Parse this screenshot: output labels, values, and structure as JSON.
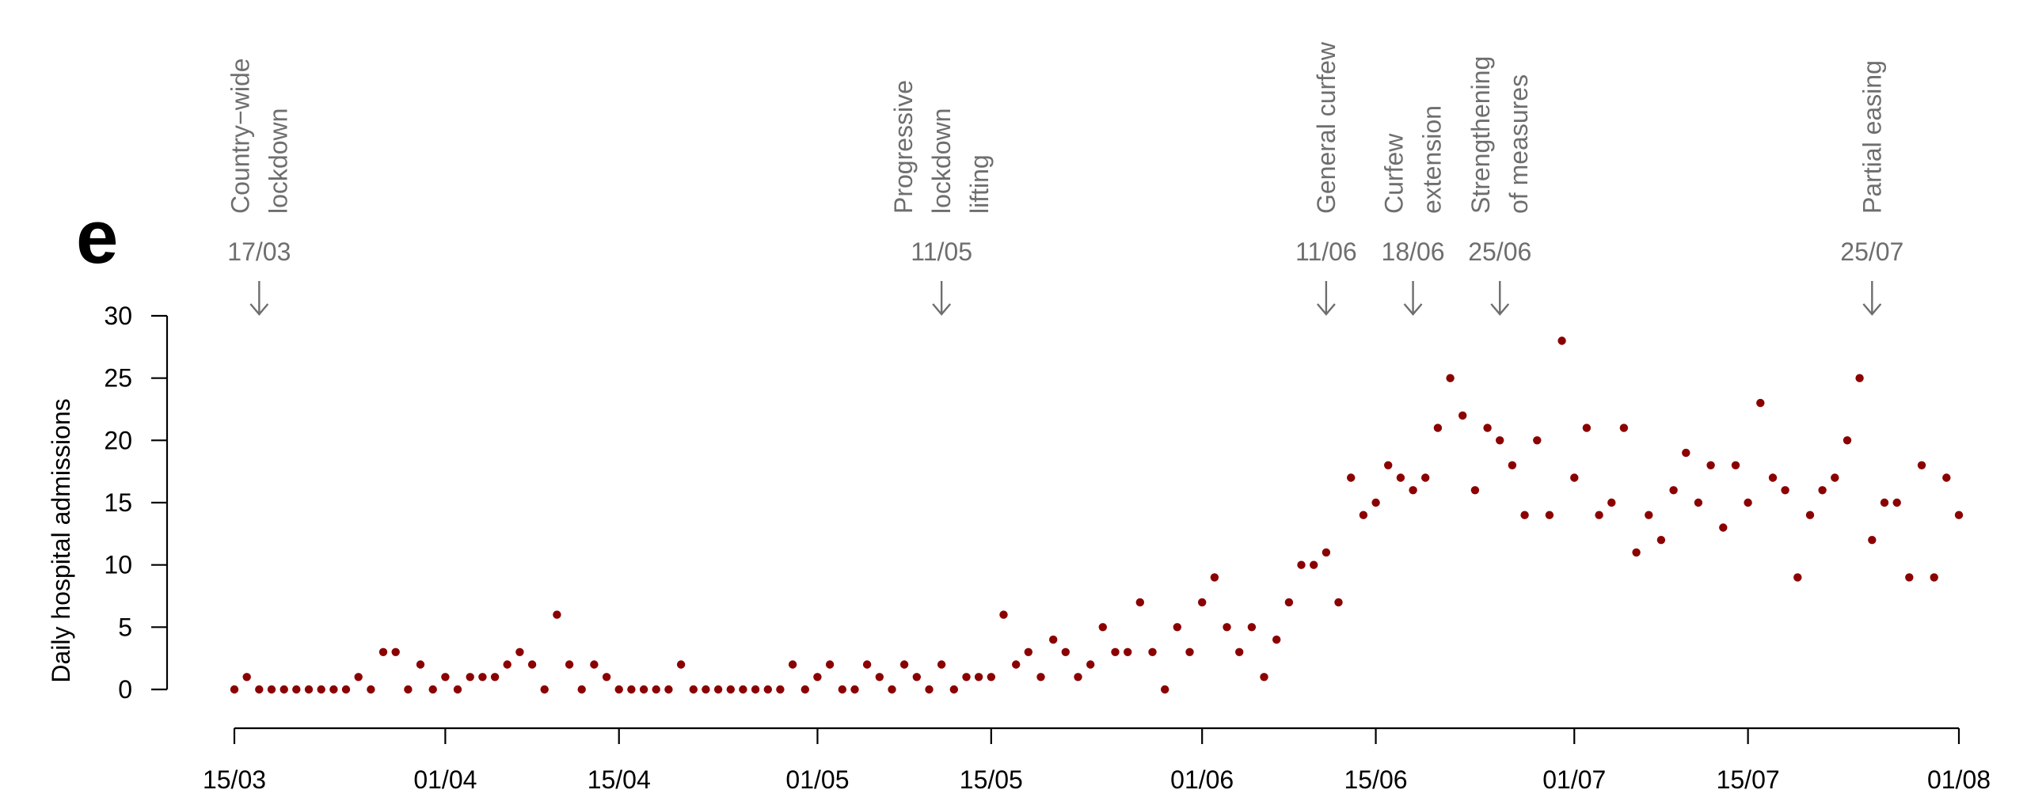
{
  "panel_label": "e",
  "chart_data": {
    "type": "scatter",
    "ylabel": "Daily hospital admissions",
    "xlabel": "",
    "ylim": [
      0,
      30
    ],
    "yticks": [
      0,
      5,
      10,
      15,
      20,
      25,
      30
    ],
    "xlim": [
      "2020-03-15",
      "2020-08-01"
    ],
    "xticks": [
      {
        "date": "2020-03-15",
        "label": "15/03"
      },
      {
        "date": "2020-04-01",
        "label": "01/04"
      },
      {
        "date": "2020-04-15",
        "label": "15/04"
      },
      {
        "date": "2020-05-01",
        "label": "01/05"
      },
      {
        "date": "2020-05-15",
        "label": "15/05"
      },
      {
        "date": "2020-06-01",
        "label": "01/06"
      },
      {
        "date": "2020-06-15",
        "label": "15/06"
      },
      {
        "date": "2020-07-01",
        "label": "01/07"
      },
      {
        "date": "2020-07-15",
        "label": "15/07"
      },
      {
        "date": "2020-08-01",
        "label": "01/08"
      }
    ],
    "point_color": "#8b0000",
    "annotation_color": "#6e6e6e",
    "events": [
      {
        "date": "2020-03-17",
        "date_label": "17/03",
        "lines": [
          "Country−wide",
          "lockdown"
        ]
      },
      {
        "date": "2020-05-11",
        "date_label": "11/05",
        "lines": [
          "Progressive",
          "lockdown",
          "lifting"
        ]
      },
      {
        "date": "2020-06-11",
        "date_label": "11/06",
        "lines": [
          "General curfew"
        ]
      },
      {
        "date": "2020-06-18",
        "date_label": "18/06",
        "lines": [
          "Curfew",
          "extension"
        ]
      },
      {
        "date": "2020-06-25",
        "date_label": "25/06",
        "lines": [
          "Strengthening",
          "of measures"
        ]
      },
      {
        "date": "2020-07-25",
        "date_label": "25/07",
        "lines": [
          "Partial easing"
        ]
      }
    ],
    "series": [
      {
        "start_date": "2020-03-15",
        "values": [
          0,
          1,
          0,
          0,
          0,
          0,
          0,
          0,
          0,
          0,
          1,
          0,
          3,
          3,
          0,
          2,
          0,
          1,
          0,
          1,
          1,
          1,
          2,
          3,
          2,
          0,
          6,
          2,
          0,
          2,
          1,
          0,
          0,
          0,
          0,
          0,
          2,
          0,
          0,
          0,
          0,
          0,
          0,
          0,
          0,
          2,
          0,
          1,
          2,
          0,
          0,
          2,
          1,
          0,
          2,
          1,
          0,
          2,
          0,
          1,
          1,
          1,
          6,
          2,
          3,
          1,
          4,
          3,
          1,
          2,
          5,
          3,
          3,
          7,
          3,
          0,
          5,
          3,
          7,
          9,
          5,
          3,
          5,
          1,
          4,
          7,
          10,
          10,
          11,
          7,
          17,
          14,
          15,
          18,
          17,
          16,
          17,
          21,
          25,
          22,
          16,
          21,
          20,
          18,
          14,
          20,
          14,
          28,
          17,
          21,
          14,
          15,
          21,
          11,
          14,
          12,
          16,
          19,
          15,
          18,
          13,
          18,
          15,
          23,
          17,
          16,
          9,
          14,
          16,
          17,
          20,
          25,
          12,
          15,
          15,
          9,
          18,
          9,
          17,
          14
        ]
      }
    ]
  }
}
